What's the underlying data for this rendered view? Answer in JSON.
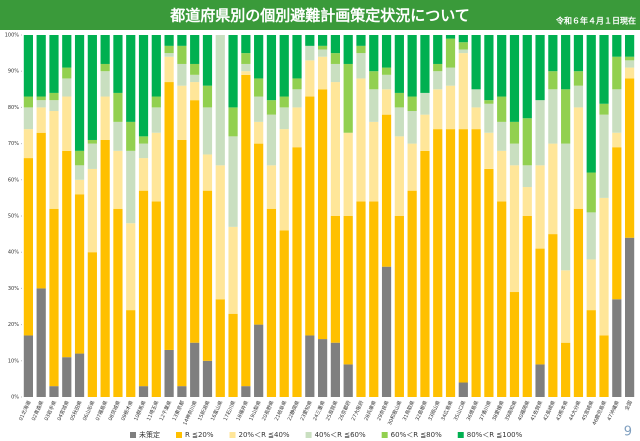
{
  "chart_data": {
    "type": "bar",
    "stacked": true,
    "title": "都道府県別の個別避難計画策定状況について",
    "subtitle": "令和６年４月１日現在",
    "categories": [
      "01北海道",
      "02青森県",
      "03岩手県",
      "04宮城県",
      "05秋田県",
      "06山形県",
      "07福島県",
      "08茨城県",
      "09栃木県",
      "10群馬県",
      "11埼玉県",
      "12千葉県",
      "13東京都",
      "14神奈川県",
      "15新潟県",
      "16富山県",
      "17石川県",
      "18福井県",
      "19山梨県",
      "20長野県",
      "21岐阜県",
      "22静岡県",
      "23愛知県",
      "24三重県",
      "25滋賀県",
      "26京都府",
      "27大阪府",
      "28兵庫県",
      "29奈良県",
      "30和歌山県",
      "31鳥取県",
      "32島根県",
      "33岡山県",
      "34広島県",
      "35山口県",
      "36徳島県",
      "37香川県",
      "38愛媛県",
      "39高知県",
      "40福岡県",
      "41佐賀県",
      "42長崎県",
      "43熊本県",
      "44大分県",
      "45宮崎県",
      "46鹿児島県",
      "47沖縄県",
      "全国"
    ],
    "series": [
      {
        "name": "未策定",
        "color": "#7f7f7f",
        "values": [
          17,
          30,
          3,
          11,
          12,
          0,
          0,
          0,
          0,
          3,
          0,
          13,
          3,
          15,
          10,
          0,
          0,
          3,
          20,
          0,
          0,
          0,
          17,
          16,
          15,
          9,
          0,
          0,
          36,
          0,
          0,
          0,
          0,
          0,
          4,
          0,
          0,
          0,
          0,
          0,
          9,
          0,
          0,
          0,
          0,
          0,
          27,
          44
        ]
      },
      {
        "name": "R ≦20%",
        "color": "#ffc000",
        "values": [
          49,
          43,
          49,
          57,
          44,
          40,
          71,
          52,
          24,
          54,
          54,
          74,
          68,
          67,
          47,
          27,
          23,
          86,
          50,
          52,
          46,
          69,
          66,
          69,
          35,
          41,
          54,
          54,
          42,
          50,
          57,
          68,
          74,
          74,
          70,
          74,
          63,
          54,
          29,
          50,
          32,
          45,
          15,
          52,
          24,
          17,
          42,
          44
        ]
      },
      {
        "name": "20%＜R ≦40%",
        "color": "#ffe699",
        "values": [
          8,
          7,
          27,
          15,
          4,
          23,
          12,
          16,
          24,
          9,
          19,
          7,
          15,
          5,
          10,
          37,
          24,
          1,
          6,
          12,
          28,
          11,
          10,
          9,
          37,
          23,
          34,
          22,
          7,
          22,
          13,
          10,
          11,
          12,
          21,
          6,
          10,
          14,
          35,
          8,
          23,
          25,
          20,
          28,
          14,
          38,
          4,
          3
        ]
      },
      {
        "name": "40%＜R ≦60%",
        "color": "#c9dfc0",
        "values": [
          6,
          2,
          3,
          5,
          4,
          7,
          7,
          8,
          20,
          4,
          7,
          1,
          6,
          2,
          13,
          36,
          25,
          2,
          7,
          14,
          6,
          5,
          4,
          2,
          5,
          0,
          7,
          9,
          4,
          8,
          9,
          6,
          5,
          5,
          1,
          5,
          8,
          8,
          6,
          6,
          18,
          15,
          35,
          6,
          13,
          23,
          12,
          2
        ]
      },
      {
        "name": "60%＜R ≦80%",
        "color": "#92d050",
        "values": [
          3,
          1,
          2,
          3,
          4,
          1,
          2,
          8,
          8,
          2,
          3,
          2,
          5,
          3,
          6,
          0,
          8,
          3,
          5,
          4,
          3,
          3,
          0,
          1,
          3,
          19,
          2,
          5,
          2,
          4,
          4,
          0,
          2,
          8,
          2,
          0,
          1,
          7,
          6,
          13,
          0,
          5,
          15,
          4,
          11,
          3,
          9,
          1
        ]
      },
      {
        "name": "80%＜R ≦100%",
        "color": "#00b050",
        "values": [
          17,
          17,
          16,
          9,
          32,
          29,
          8,
          16,
          24,
          28,
          17,
          3,
          3,
          8,
          14,
          0,
          20,
          5,
          12,
          18,
          17,
          12,
          3,
          3,
          5,
          8,
          3,
          10,
          9,
          16,
          17,
          16,
          8,
          1,
          2,
          15,
          18,
          17,
          24,
          23,
          18,
          10,
          15,
          10,
          38,
          19,
          6,
          6
        ]
      }
    ],
    "ylim": [
      0,
      100
    ],
    "yticks": [
      {
        "value": 0,
        "label": "0%"
      },
      {
        "value": 10,
        "label": "10%"
      },
      {
        "value": 20,
        "label": "20%"
      },
      {
        "value": 30,
        "label": "30%"
      },
      {
        "value": 40,
        "label": "40%"
      },
      {
        "value": 50,
        "label": "50%"
      },
      {
        "value": 60,
        "label": "60%"
      },
      {
        "value": 70,
        "label": "70%"
      },
      {
        "value": 80,
        "label": "80%"
      },
      {
        "value": 90,
        "label": "90%"
      },
      {
        "value": 100,
        "label": "100%"
      }
    ],
    "grid": false
  },
  "page_number": "9"
}
